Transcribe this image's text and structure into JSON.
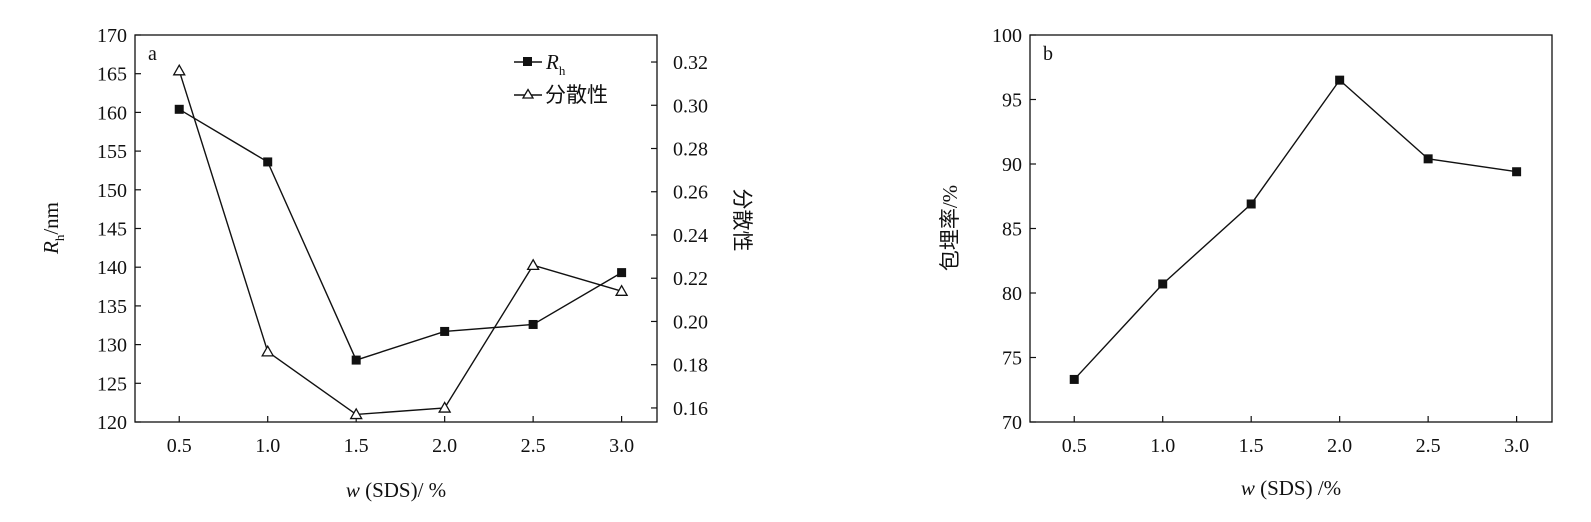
{
  "chart_data": [
    {
      "type": "line",
      "panel_label": "a",
      "x": [
        0.5,
        1.0,
        1.5,
        2.0,
        2.5,
        3.0
      ],
      "x_tick_labels": [
        "0.5",
        "1.0",
        "1.5",
        "2.0",
        "2.5",
        "3.0"
      ],
      "xlim": [
        0.25,
        3.2
      ],
      "xlabel": {
        "italic": "w",
        "rest": " (SDS)/ %"
      },
      "ylabel_left": {
        "main": "R",
        "sub": "h",
        "rest": "/nm"
      },
      "ylabel_right": "分散性",
      "ylim_left": [
        120,
        170
      ],
      "ylim_right": [
        0.1535,
        0.3325
      ],
      "y_left_ticks": [
        "120",
        "125",
        "130",
        "135",
        "140",
        "145",
        "150",
        "155",
        "160",
        "165",
        "170"
      ],
      "y_right_ticks": [
        "0.16",
        "0.18",
        "0.20",
        "0.22",
        "0.24",
        "0.26",
        "0.28",
        "0.30",
        "0.32"
      ],
      "series": [
        {
          "name": "R",
          "name_sub": "h",
          "marker": "square-filled",
          "axis": "left",
          "values": [
            160.4,
            153.6,
            128.0,
            131.7,
            132.6,
            139.3
          ]
        },
        {
          "name": "分散性",
          "marker": "triangle-open",
          "axis": "right",
          "values": [
            0.316,
            0.186,
            0.157,
            0.16,
            0.226,
            0.214
          ]
        }
      ],
      "legend_position": "top-right"
    },
    {
      "type": "line",
      "panel_label": "b",
      "x": [
        0.5,
        1.0,
        1.5,
        2.0,
        2.5,
        3.0
      ],
      "x_tick_labels": [
        "0.5",
        "1.0",
        "1.5",
        "2.0",
        "2.5",
        "3.0"
      ],
      "xlim": [
        0.25,
        3.2
      ],
      "xlabel": {
        "italic": "w",
        "rest": " (SDS) /%"
      },
      "ylabel": "包埋率/%",
      "ylim": [
        70,
        100
      ],
      "y_ticks": [
        "70",
        "75",
        "80",
        "85",
        "90",
        "95",
        "100"
      ],
      "series": [
        {
          "marker": "square-filled",
          "values": [
            73.3,
            80.7,
            86.9,
            96.5,
            90.4,
            89.4
          ]
        }
      ]
    }
  ]
}
